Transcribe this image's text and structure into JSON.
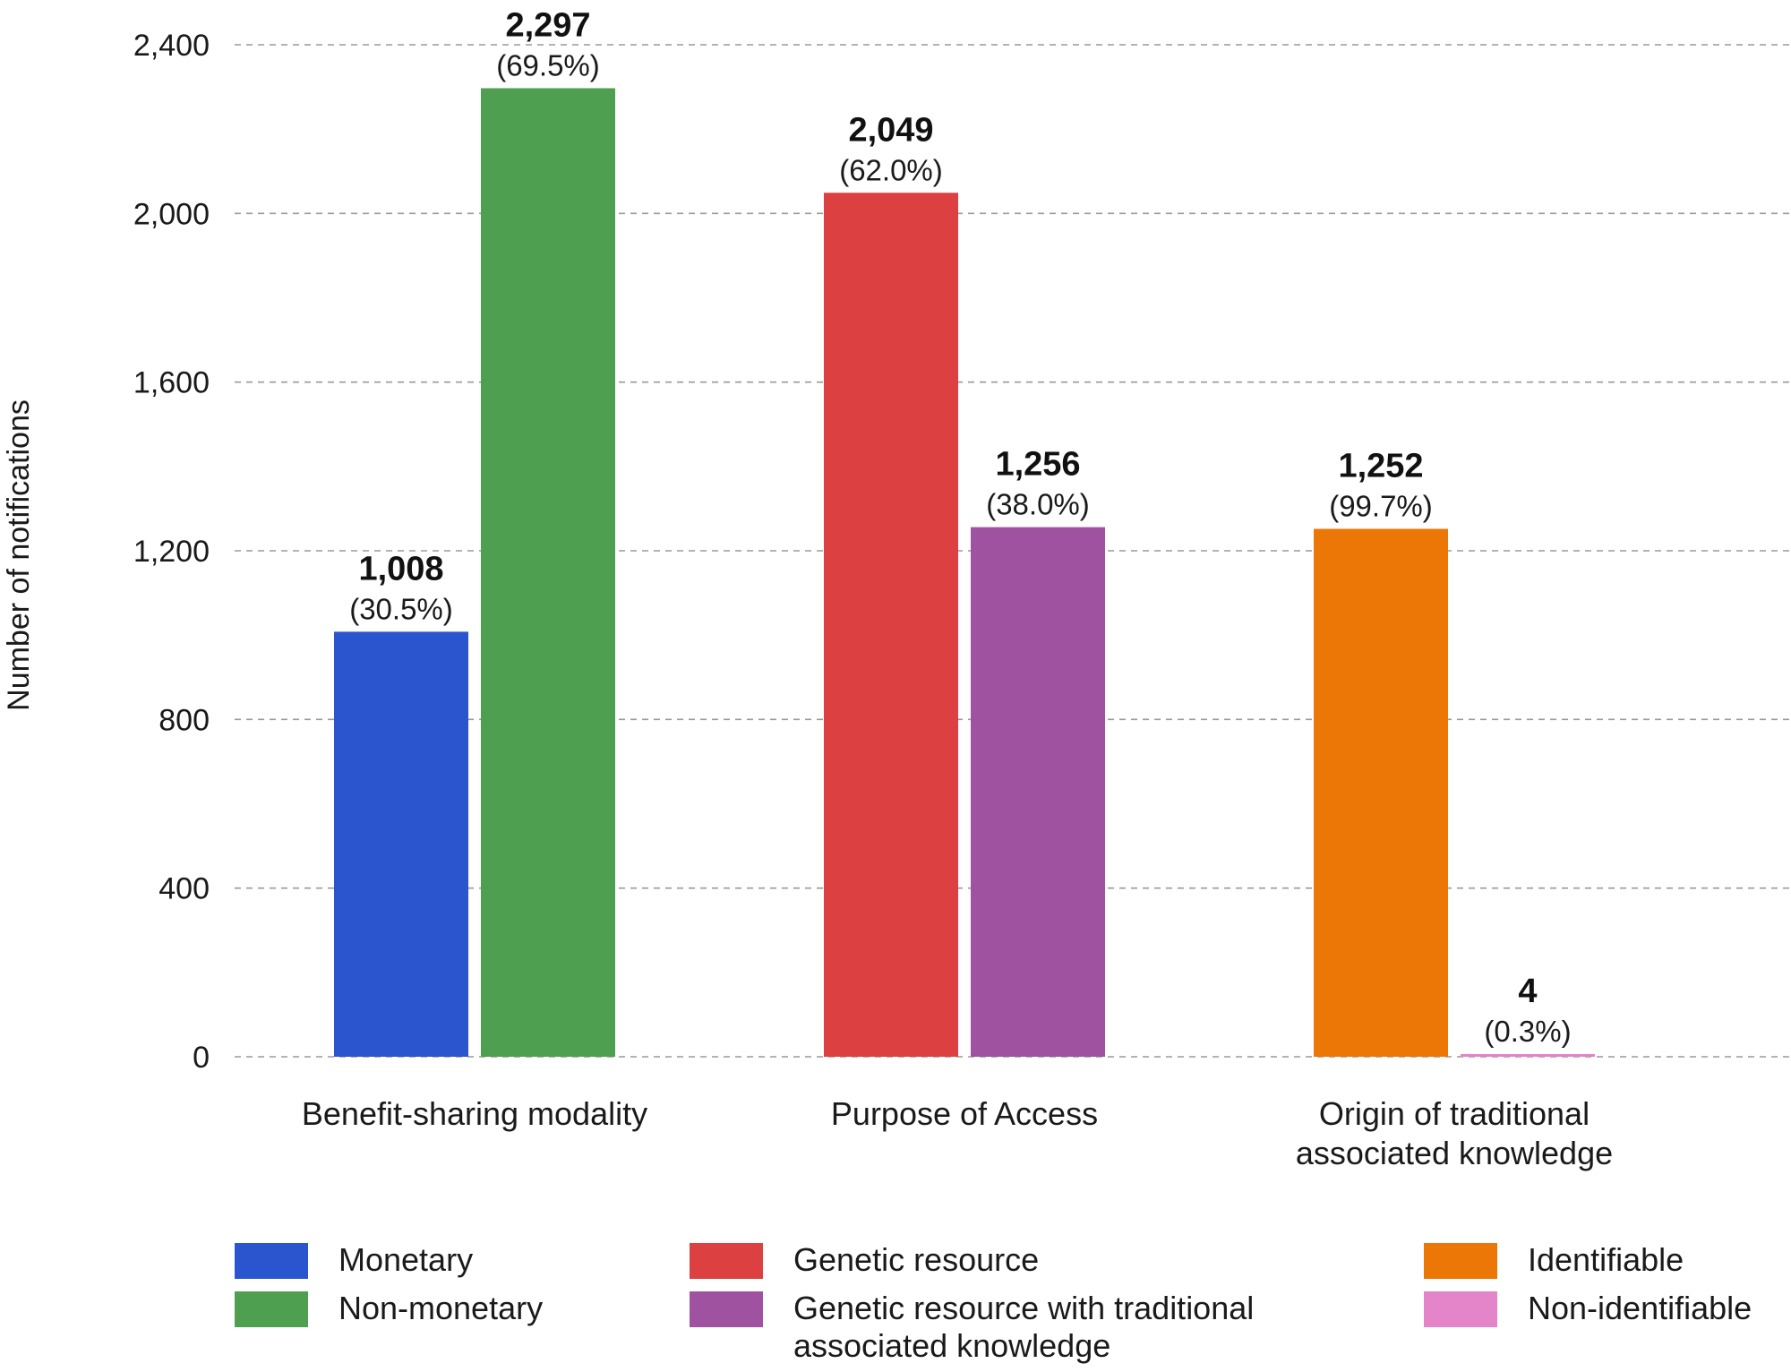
{
  "chart_data": {
    "type": "bar",
    "ylabel": "Number of notifications",
    "ylim": [
      0,
      2400
    ],
    "yticks": [
      "0",
      "400",
      "800",
      "1,200",
      "1,600",
      "2,000",
      "2,400"
    ],
    "grid": true,
    "legend_position": "bottom",
    "groups": [
      {
        "label_lines": [
          "Benefit-sharing modality"
        ],
        "bars": [
          {
            "name": "Monetary",
            "value": 1008,
            "value_label": "1,008",
            "pct_label": "(30.5%)",
            "color": "#2b55cf"
          },
          {
            "name": "Non-monetary",
            "value": 2297,
            "value_label": "2,297",
            "pct_label": "(69.5%)",
            "color": "#4e9f50"
          }
        ]
      },
      {
        "label_lines": [
          "Purpose of Access"
        ],
        "bars": [
          {
            "name": "Genetic resource",
            "value": 2049,
            "value_label": "2,049",
            "pct_label": "(62.0%)",
            "color": "#dc4040"
          },
          {
            "name": "Genetic resource with traditional associated knowledge",
            "value": 1256,
            "value_label": "1,256",
            "pct_label": "(38.0%)",
            "color": "#9e52a0"
          }
        ]
      },
      {
        "label_lines": [
          "Origin of traditional",
          "associated knowledge"
        ],
        "bars": [
          {
            "name": "Identifiable",
            "value": 1252,
            "value_label": "1,252",
            "pct_label": "(99.7%)",
            "color": "#ec7706"
          },
          {
            "name": "Non-identifiable",
            "value": 4,
            "value_label": "4",
            "pct_label": "(0.3%)",
            "color": "#e385c8"
          }
        ]
      }
    ],
    "legend": [
      {
        "lines": [
          "Monetary"
        ],
        "color": "#2b55cf"
      },
      {
        "lines": [
          "Non-monetary"
        ],
        "color": "#4e9f50"
      },
      {
        "lines": [
          "Genetic resource"
        ],
        "color": "#dc4040"
      },
      {
        "lines": [
          "Genetic resource with traditional",
          "associated knowledge"
        ],
        "color": "#9e52a0"
      },
      {
        "lines": [
          "Identifiable"
        ],
        "color": "#ec7706"
      },
      {
        "lines": [
          "Non-identifiable"
        ],
        "color": "#e385c8"
      }
    ]
  }
}
